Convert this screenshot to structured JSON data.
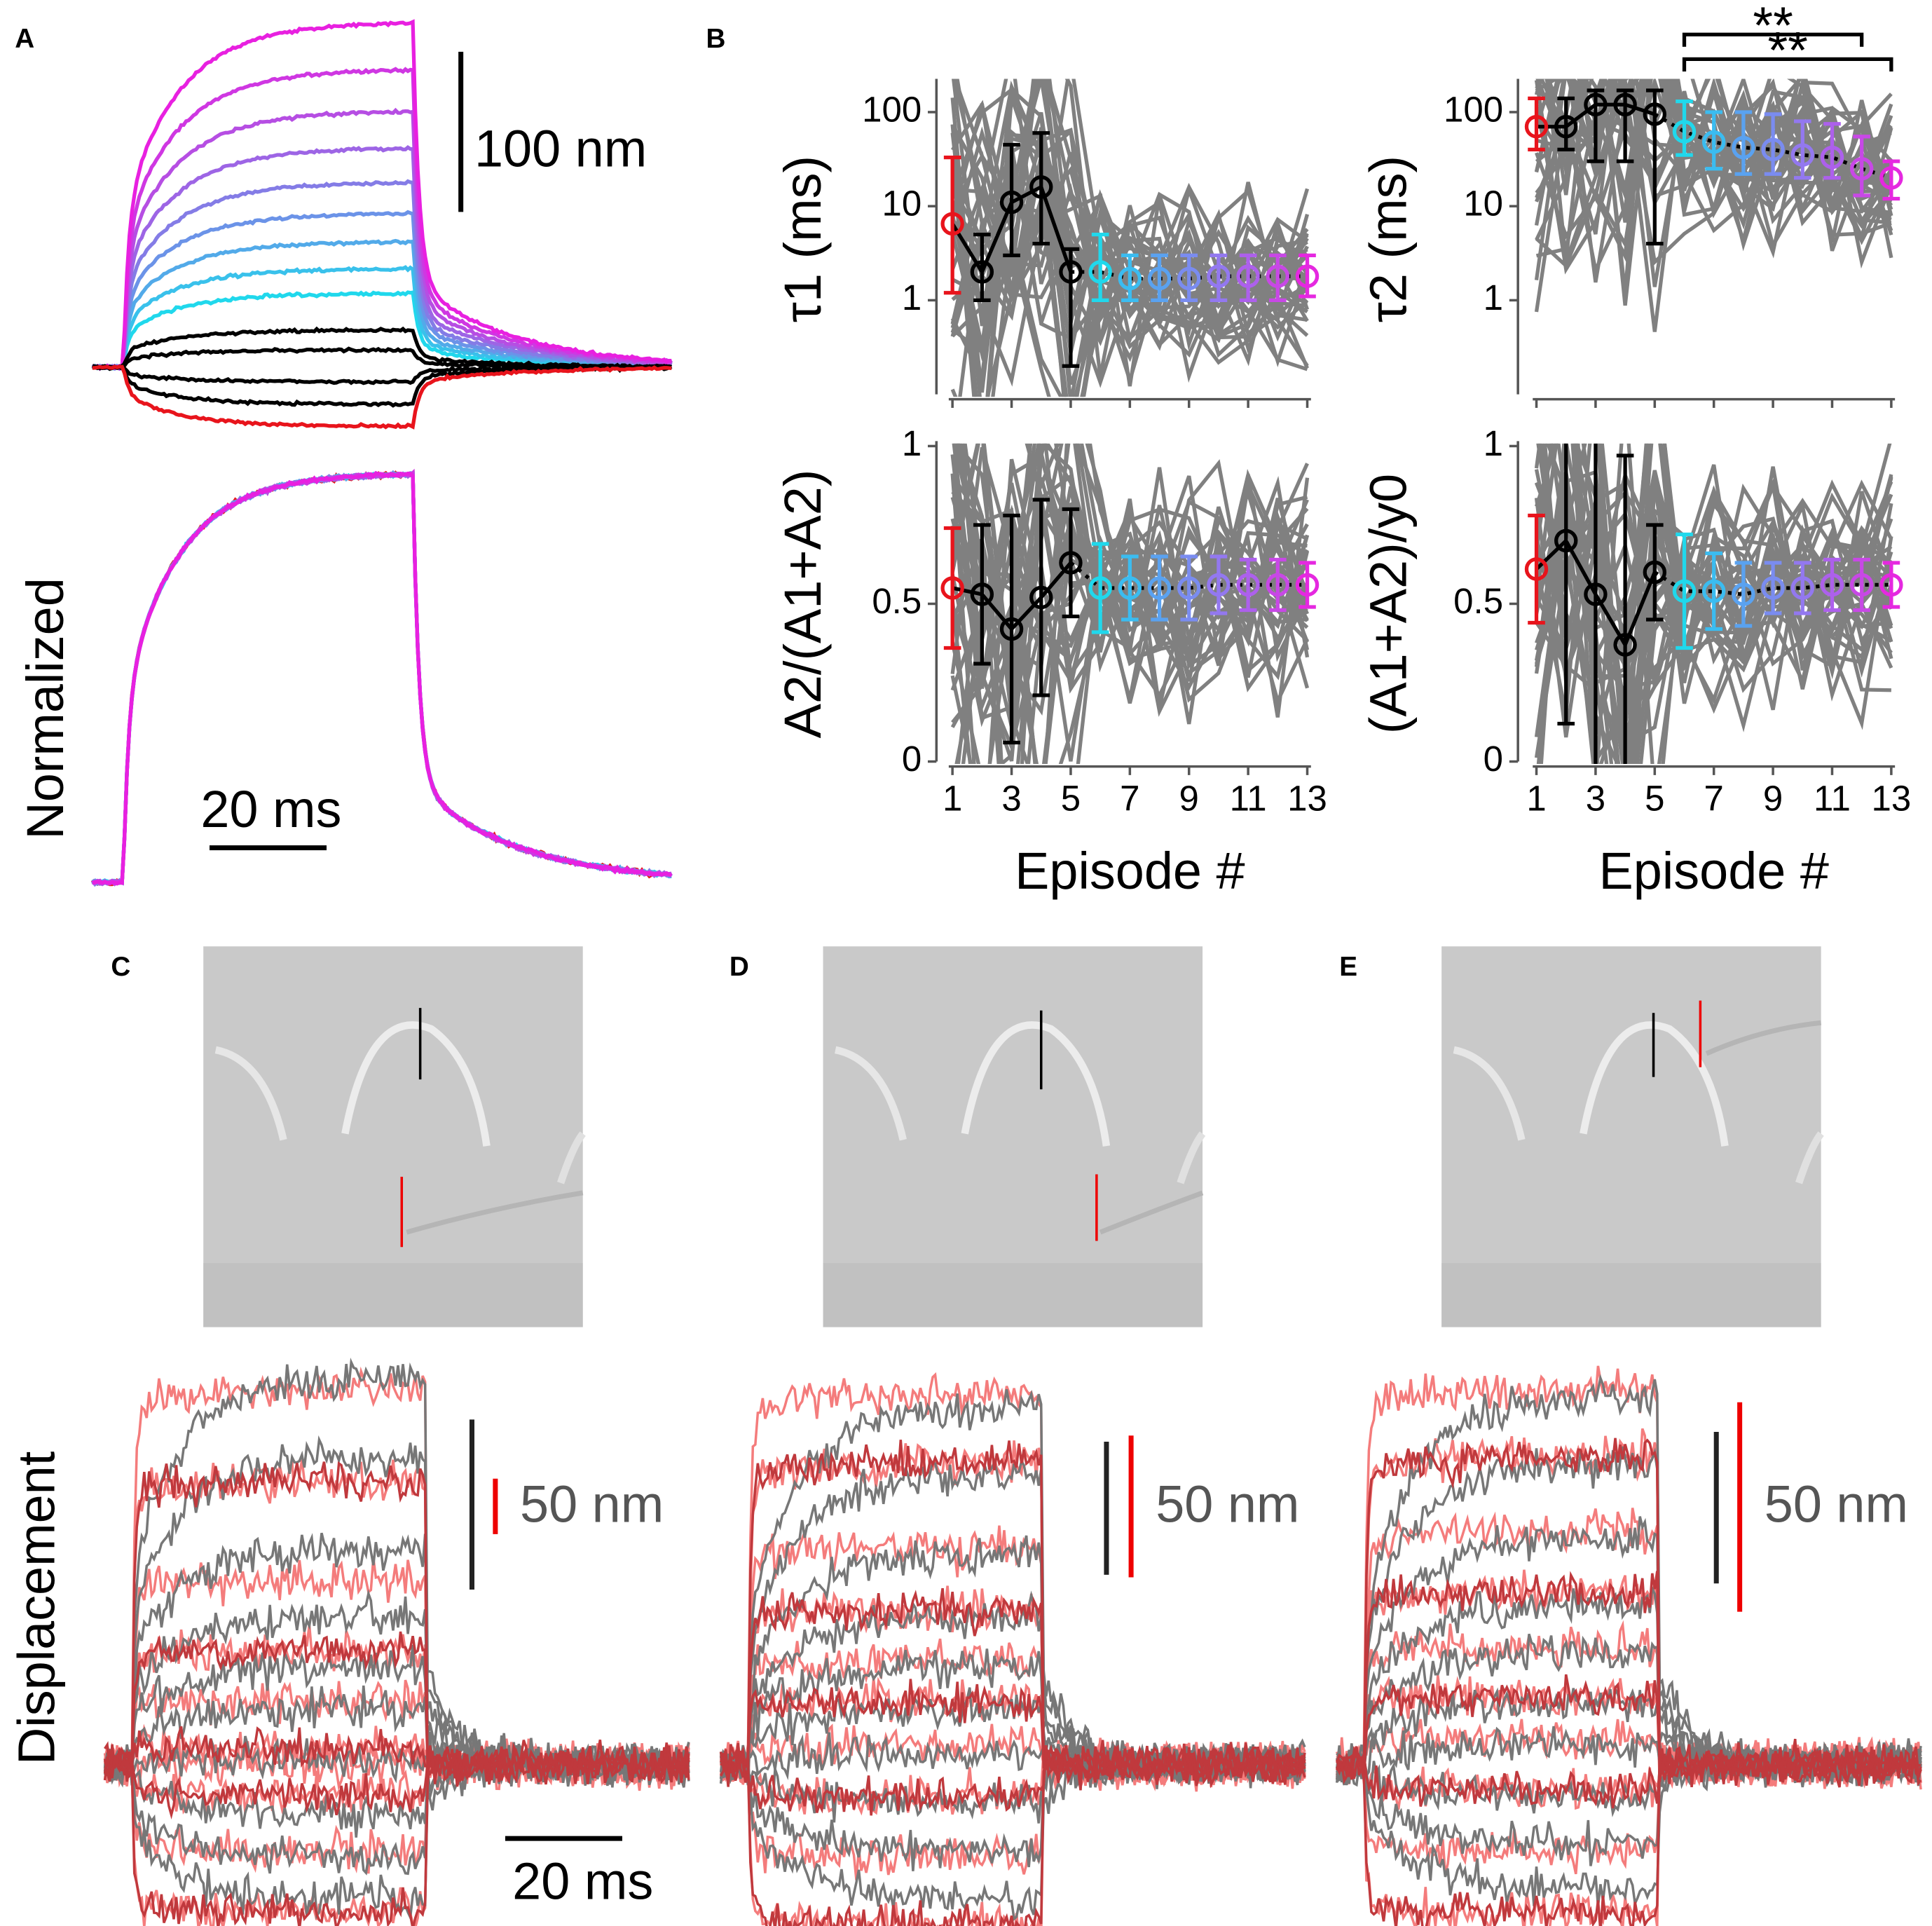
{
  "panel_labels": [
    "A",
    "B",
    "C",
    "D",
    "E"
  ],
  "panel_a": {
    "scale_y": "100 nm",
    "scale_x": "20 ms",
    "ylabel": "Normalized"
  },
  "panels_cde": {
    "ylabel": "Displacement",
    "scale_x": "20 ms",
    "scale_y": [
      "50 nm",
      "50 nm",
      "50 nm"
    ]
  },
  "chart_data": [
    {
      "type": "line",
      "ylabel": "τ1 (ms)",
      "log": true,
      "x": [
        1,
        2,
        3,
        4,
        5,
        6,
        7,
        8,
        9,
        10,
        11,
        12,
        13
      ],
      "values": [
        6.5,
        2,
        11,
        16,
        2,
        2,
        1.7,
        1.7,
        1.7,
        1.8,
        1.8,
        1.8,
        1.8
      ],
      "lower": [
        1.2,
        1,
        3,
        4,
        0.2,
        1,
        1,
        1,
        1,
        1,
        1,
        1,
        1.1
      ],
      "upper": [
        33,
        5,
        45,
        60,
        3.5,
        5,
        3,
        3,
        3,
        3,
        3,
        3,
        3
      ],
      "colors": [
        "#e8141c",
        "#000000",
        "#000000",
        "#000000",
        "#000000",
        "#20d8ec",
        "#3bbcf0",
        "#5aa2f0",
        "#7a8cf0",
        "#9378f0",
        "#ad60ec",
        "#c848e6",
        "#e528e0"
      ],
      "xlim": [
        1,
        13
      ],
      "xticks": [
        1,
        3,
        5,
        7,
        9,
        11,
        13
      ],
      "show_xticklabels": false,
      "ylim": [
        0.1,
        200
      ],
      "yticks": [
        1,
        10,
        100
      ]
    },
    {
      "type": "line",
      "ylabel": "τ2 (ms)",
      "log": true,
      "x": [
        1,
        2,
        3,
        4,
        5,
        6,
        7,
        8,
        9,
        10,
        11,
        12,
        13
      ],
      "values": [
        70,
        70,
        120,
        120,
        95,
        62,
        48,
        42,
        40,
        35,
        33,
        25,
        20
      ],
      "lower": [
        40,
        40,
        30,
        30,
        4,
        35,
        25,
        22,
        22,
        20,
        20,
        13,
        12
      ],
      "upper": [
        140,
        140,
        170,
        170,
        170,
        130,
        100,
        100,
        95,
        80,
        75,
        55,
        30
      ],
      "colors": [
        "#e8141c",
        "#000000",
        "#000000",
        "#000000",
        "#000000",
        "#20d8ec",
        "#3bbcf0",
        "#5aa2f0",
        "#7a8cf0",
        "#9378f0",
        "#ad60ec",
        "#c848e6",
        "#e528e0"
      ],
      "xlim": [
        1,
        13
      ],
      "xticks": [
        1,
        3,
        5,
        7,
        9,
        11,
        13
      ],
      "show_xticklabels": false,
      "ylim": [
        0.1,
        200
      ],
      "yticks": [
        1,
        10,
        100
      ],
      "annotations": [
        {
          "text": "**",
          "x": [
            6,
            12
          ]
        },
        {
          "text": "**",
          "x": [
            6,
            13
          ]
        }
      ]
    },
    {
      "type": "line",
      "ylabel": "A2/(A1+A2)",
      "xlabel": "Episode #",
      "log": false,
      "x": [
        1,
        2,
        3,
        4,
        5,
        6,
        7,
        8,
        9,
        10,
        11,
        12,
        13
      ],
      "values": [
        0.55,
        0.53,
        0.42,
        0.52,
        0.63,
        0.55,
        0.55,
        0.55,
        0.55,
        0.56,
        0.56,
        0.56,
        0.56
      ],
      "error": [
        0.19,
        0.22,
        0.36,
        0.31,
        0.17,
        0.14,
        0.1,
        0.1,
        0.1,
        0.09,
        0.08,
        0.08,
        0.07
      ],
      "colors": [
        "#e8141c",
        "#000000",
        "#000000",
        "#000000",
        "#000000",
        "#20d8ec",
        "#3bbcf0",
        "#5aa2f0",
        "#7a8cf0",
        "#9378f0",
        "#ad60ec",
        "#c848e6",
        "#e528e0"
      ],
      "xlim": [
        1,
        13
      ],
      "xticks": [
        1,
        3,
        5,
        7,
        9,
        11,
        13
      ],
      "show_xticklabels": true,
      "ylim": [
        0,
        1
      ],
      "yticks": [
        0,
        0.5,
        1
      ]
    },
    {
      "type": "line",
      "ylabel": "(A1+A2)/y0",
      "xlabel": "Episode #",
      "log": false,
      "x": [
        1,
        2,
        3,
        4,
        5,
        6,
        7,
        8,
        9,
        10,
        11,
        12,
        13
      ],
      "values": [
        0.61,
        0.7,
        0.53,
        0.37,
        0.6,
        0.54,
        0.54,
        0.53,
        0.55,
        0.55,
        0.56,
        0.56,
        0.56
      ],
      "error": [
        0.17,
        0.58,
        0.6,
        0.6,
        0.15,
        0.18,
        0.12,
        0.1,
        0.08,
        0.08,
        0.08,
        0.08,
        0.07
      ],
      "colors": [
        "#e8141c",
        "#000000",
        "#000000",
        "#000000",
        "#000000",
        "#20d8ec",
        "#3bbcf0",
        "#5aa2f0",
        "#7a8cf0",
        "#9378f0",
        "#ad60ec",
        "#c848e6",
        "#e528e0"
      ],
      "xlim": [
        1,
        13
      ],
      "xticks": [
        1,
        3,
        5,
        7,
        9,
        11,
        13
      ],
      "show_xticklabels": true,
      "ylim": [
        0,
        1
      ],
      "yticks": [
        0,
        0.5,
        1
      ]
    }
  ]
}
